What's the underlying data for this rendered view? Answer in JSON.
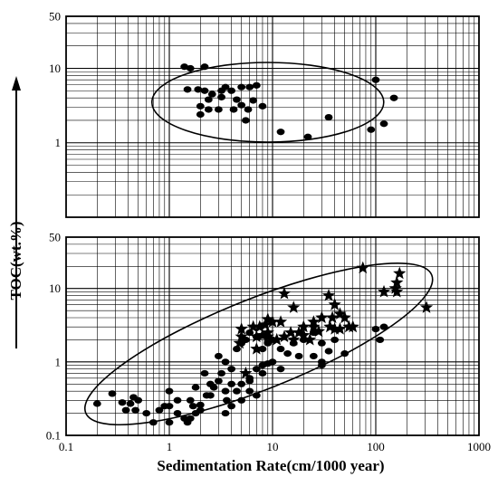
{
  "figure": {
    "xlabel": "Sedimentation Rate(cm/1000 year)",
    "ylabel": "TOC(wt.%)"
  },
  "chart_data": [
    {
      "type": "scatter",
      "panel": "top",
      "xscale": "log",
      "yscale": "log",
      "xlim": [
        0.1,
        1000
      ],
      "ylim": [
        0.1,
        50
      ],
      "ytick_labels": [
        "50",
        "10",
        "1"
      ],
      "grid": true,
      "ellipse_center": [
        9,
        3.5
      ],
      "series": [
        {
          "marker": "circle",
          "points": [
            [
              1.4,
              10.5
            ],
            [
              1.6,
              10
            ],
            [
              2.2,
              10.5
            ],
            [
              1.5,
              5.2
            ],
            [
              1.9,
              5.2
            ],
            [
              2.2,
              5.0
            ],
            [
              2.4,
              3.8
            ],
            [
              2.6,
              4.5
            ],
            [
              3.2,
              5.0
            ],
            [
              3.5,
              5.6
            ],
            [
              3.2,
              4.1
            ],
            [
              4.0,
              5.0
            ],
            [
              4.5,
              3.8
            ],
            [
              5.0,
              5.6
            ],
            [
              6.0,
              5.6
            ],
            [
              7.0,
              5.9
            ],
            [
              2.0,
              3.1
            ],
            [
              2.4,
              2.8
            ],
            [
              3.0,
              2.8
            ],
            [
              4.2,
              2.8
            ],
            [
              5.0,
              3.2
            ],
            [
              5.8,
              2.8
            ],
            [
              6.5,
              3.7
            ],
            [
              8.0,
              3.1
            ],
            [
              2.0,
              2.4
            ],
            [
              5.5,
              2.0
            ],
            [
              12,
              1.4
            ],
            [
              22,
              1.2
            ],
            [
              35,
              2.2
            ],
            [
              90,
              1.5
            ],
            [
              100,
              7.0
            ],
            [
              150,
              4.0
            ],
            [
              120,
              1.8
            ]
          ]
        }
      ]
    },
    {
      "type": "scatter",
      "panel": "bottom",
      "xscale": "log",
      "yscale": "log",
      "xlim": [
        0.1,
        1000
      ],
      "ylim": [
        0.1,
        50
      ],
      "xtick_labels": [
        "0.1",
        "1",
        "10",
        "100",
        "1000"
      ],
      "ytick_labels": [
        "50",
        "10",
        "1",
        "0.1"
      ],
      "grid": true,
      "ellipse_axis": [
        [
          0.18,
          0.22
        ],
        [
          300,
          14
        ]
      ],
      "series": [
        {
          "marker": "circle",
          "points": [
            [
              0.2,
              0.27
            ],
            [
              0.28,
              0.37
            ],
            [
              0.35,
              0.28
            ],
            [
              0.42,
              0.27
            ],
            [
              0.45,
              0.33
            ],
            [
              0.38,
              0.22
            ],
            [
              0.47,
              0.22
            ],
            [
              0.6,
              0.2
            ],
            [
              0.8,
              0.22
            ],
            [
              1.0,
              0.25
            ],
            [
              1.2,
              0.2
            ],
            [
              1.4,
              0.17
            ],
            [
              1.6,
              0.17
            ],
            [
              1.8,
              0.2
            ],
            [
              1.5,
              0.15
            ],
            [
              1.0,
              0.15
            ],
            [
              0.7,
              0.15
            ],
            [
              0.9,
              0.25
            ],
            [
              1.0,
              0.4
            ],
            [
              1.2,
              0.3
            ],
            [
              1.6,
              0.3
            ],
            [
              2.0,
              0.26
            ],
            [
              2.3,
              0.35
            ],
            [
              2.5,
              0.5
            ],
            [
              2.7,
              0.45
            ],
            [
              3.0,
              0.55
            ],
            [
              3.5,
              0.4
            ],
            [
              3.2,
              0.7
            ],
            [
              3.6,
              0.3
            ],
            [
              4.0,
              0.5
            ],
            [
              4.5,
              0.4
            ],
            [
              5.0,
              0.5
            ],
            [
              6.0,
              0.6
            ],
            [
              7.0,
              0.8
            ],
            [
              8.0,
              0.9
            ],
            [
              9.0,
              0.95
            ],
            [
              10,
              1.0
            ],
            [
              4.0,
              0.8
            ],
            [
              3.0,
              1.2
            ],
            [
              3.5,
              1.0
            ],
            [
              4.5,
              1.5
            ],
            [
              5.0,
              1.8
            ],
            [
              5.5,
              2.0
            ],
            [
              6.0,
              2.5
            ],
            [
              7.0,
              2.2
            ],
            [
              8.0,
              1.5
            ],
            [
              9.0,
              1.8
            ],
            [
              10,
              2.0
            ],
            [
              12,
              1.5
            ],
            [
              14,
              1.3
            ],
            [
              16,
              1.8
            ],
            [
              20,
              2.0
            ],
            [
              25,
              2.5
            ],
            [
              30,
              1.8
            ],
            [
              35,
              1.4
            ],
            [
              40,
              2.0
            ],
            [
              50,
              1.3
            ],
            [
              30,
              1.0
            ],
            [
              2.2,
              0.7
            ],
            [
              1.8,
              0.45
            ],
            [
              2.5,
              0.35
            ],
            [
              2.0,
              0.22
            ],
            [
              1.7,
              0.25
            ],
            [
              0.5,
              0.3
            ],
            [
              3.5,
              0.2
            ],
            [
              4.0,
              0.25
            ],
            [
              5.0,
              0.3
            ],
            [
              6.0,
              0.4
            ],
            [
              8.0,
              0.7
            ],
            [
              12,
              0.8
            ],
            [
              18,
              1.2
            ],
            [
              25,
              1.2
            ],
            [
              30,
              0.9
            ],
            [
              100,
              2.8
            ],
            [
              120,
              3.0
            ],
            [
              110,
              2.0
            ],
            [
              6.0,
              0.55
            ],
            [
              7.0,
              0.35
            ]
          ]
        },
        {
          "marker": "star",
          "points": [
            [
              75,
              19
            ],
            [
              170,
              16
            ],
            [
              160,
              12
            ],
            [
              155,
              10
            ],
            [
              160,
              9
            ],
            [
              120,
              9
            ],
            [
              13,
              8.5
            ],
            [
              35,
              8
            ],
            [
              310,
              5.5
            ],
            [
              16,
              5.5
            ],
            [
              40,
              6
            ],
            [
              45,
              4.5
            ],
            [
              30,
              4.0
            ],
            [
              50,
              4.0
            ],
            [
              55,
              3.0
            ],
            [
              60,
              3.0
            ],
            [
              36,
              3.0
            ],
            [
              25,
              3.0
            ],
            [
              20,
              3.0
            ],
            [
              18,
              2.5
            ],
            [
              15,
              2.5
            ],
            [
              10,
              3.5
            ],
            [
              8.5,
              3.2
            ],
            [
              7.5,
              3.0
            ],
            [
              6.5,
              3.0
            ],
            [
              5.0,
              2.8
            ],
            [
              9.0,
              2.5
            ],
            [
              13,
              2.2
            ],
            [
              12,
              3.5
            ],
            [
              9.0,
              3.8
            ],
            [
              8.0,
              2.3
            ],
            [
              7.0,
              2.2
            ],
            [
              5.0,
              2.2
            ],
            [
              4.8,
              1.8
            ],
            [
              5.5,
              0.7
            ],
            [
              7.0,
              1.5
            ],
            [
              9.0,
              2.2
            ],
            [
              11,
              2.0
            ],
            [
              16,
              2.0
            ],
            [
              20,
              2.3
            ],
            [
              23,
              2.0
            ],
            [
              28,
              2.6
            ],
            [
              40,
              2.8
            ],
            [
              45,
              2.8
            ],
            [
              38,
              4.0
            ],
            [
              25,
              3.5
            ]
          ]
        }
      ]
    }
  ]
}
